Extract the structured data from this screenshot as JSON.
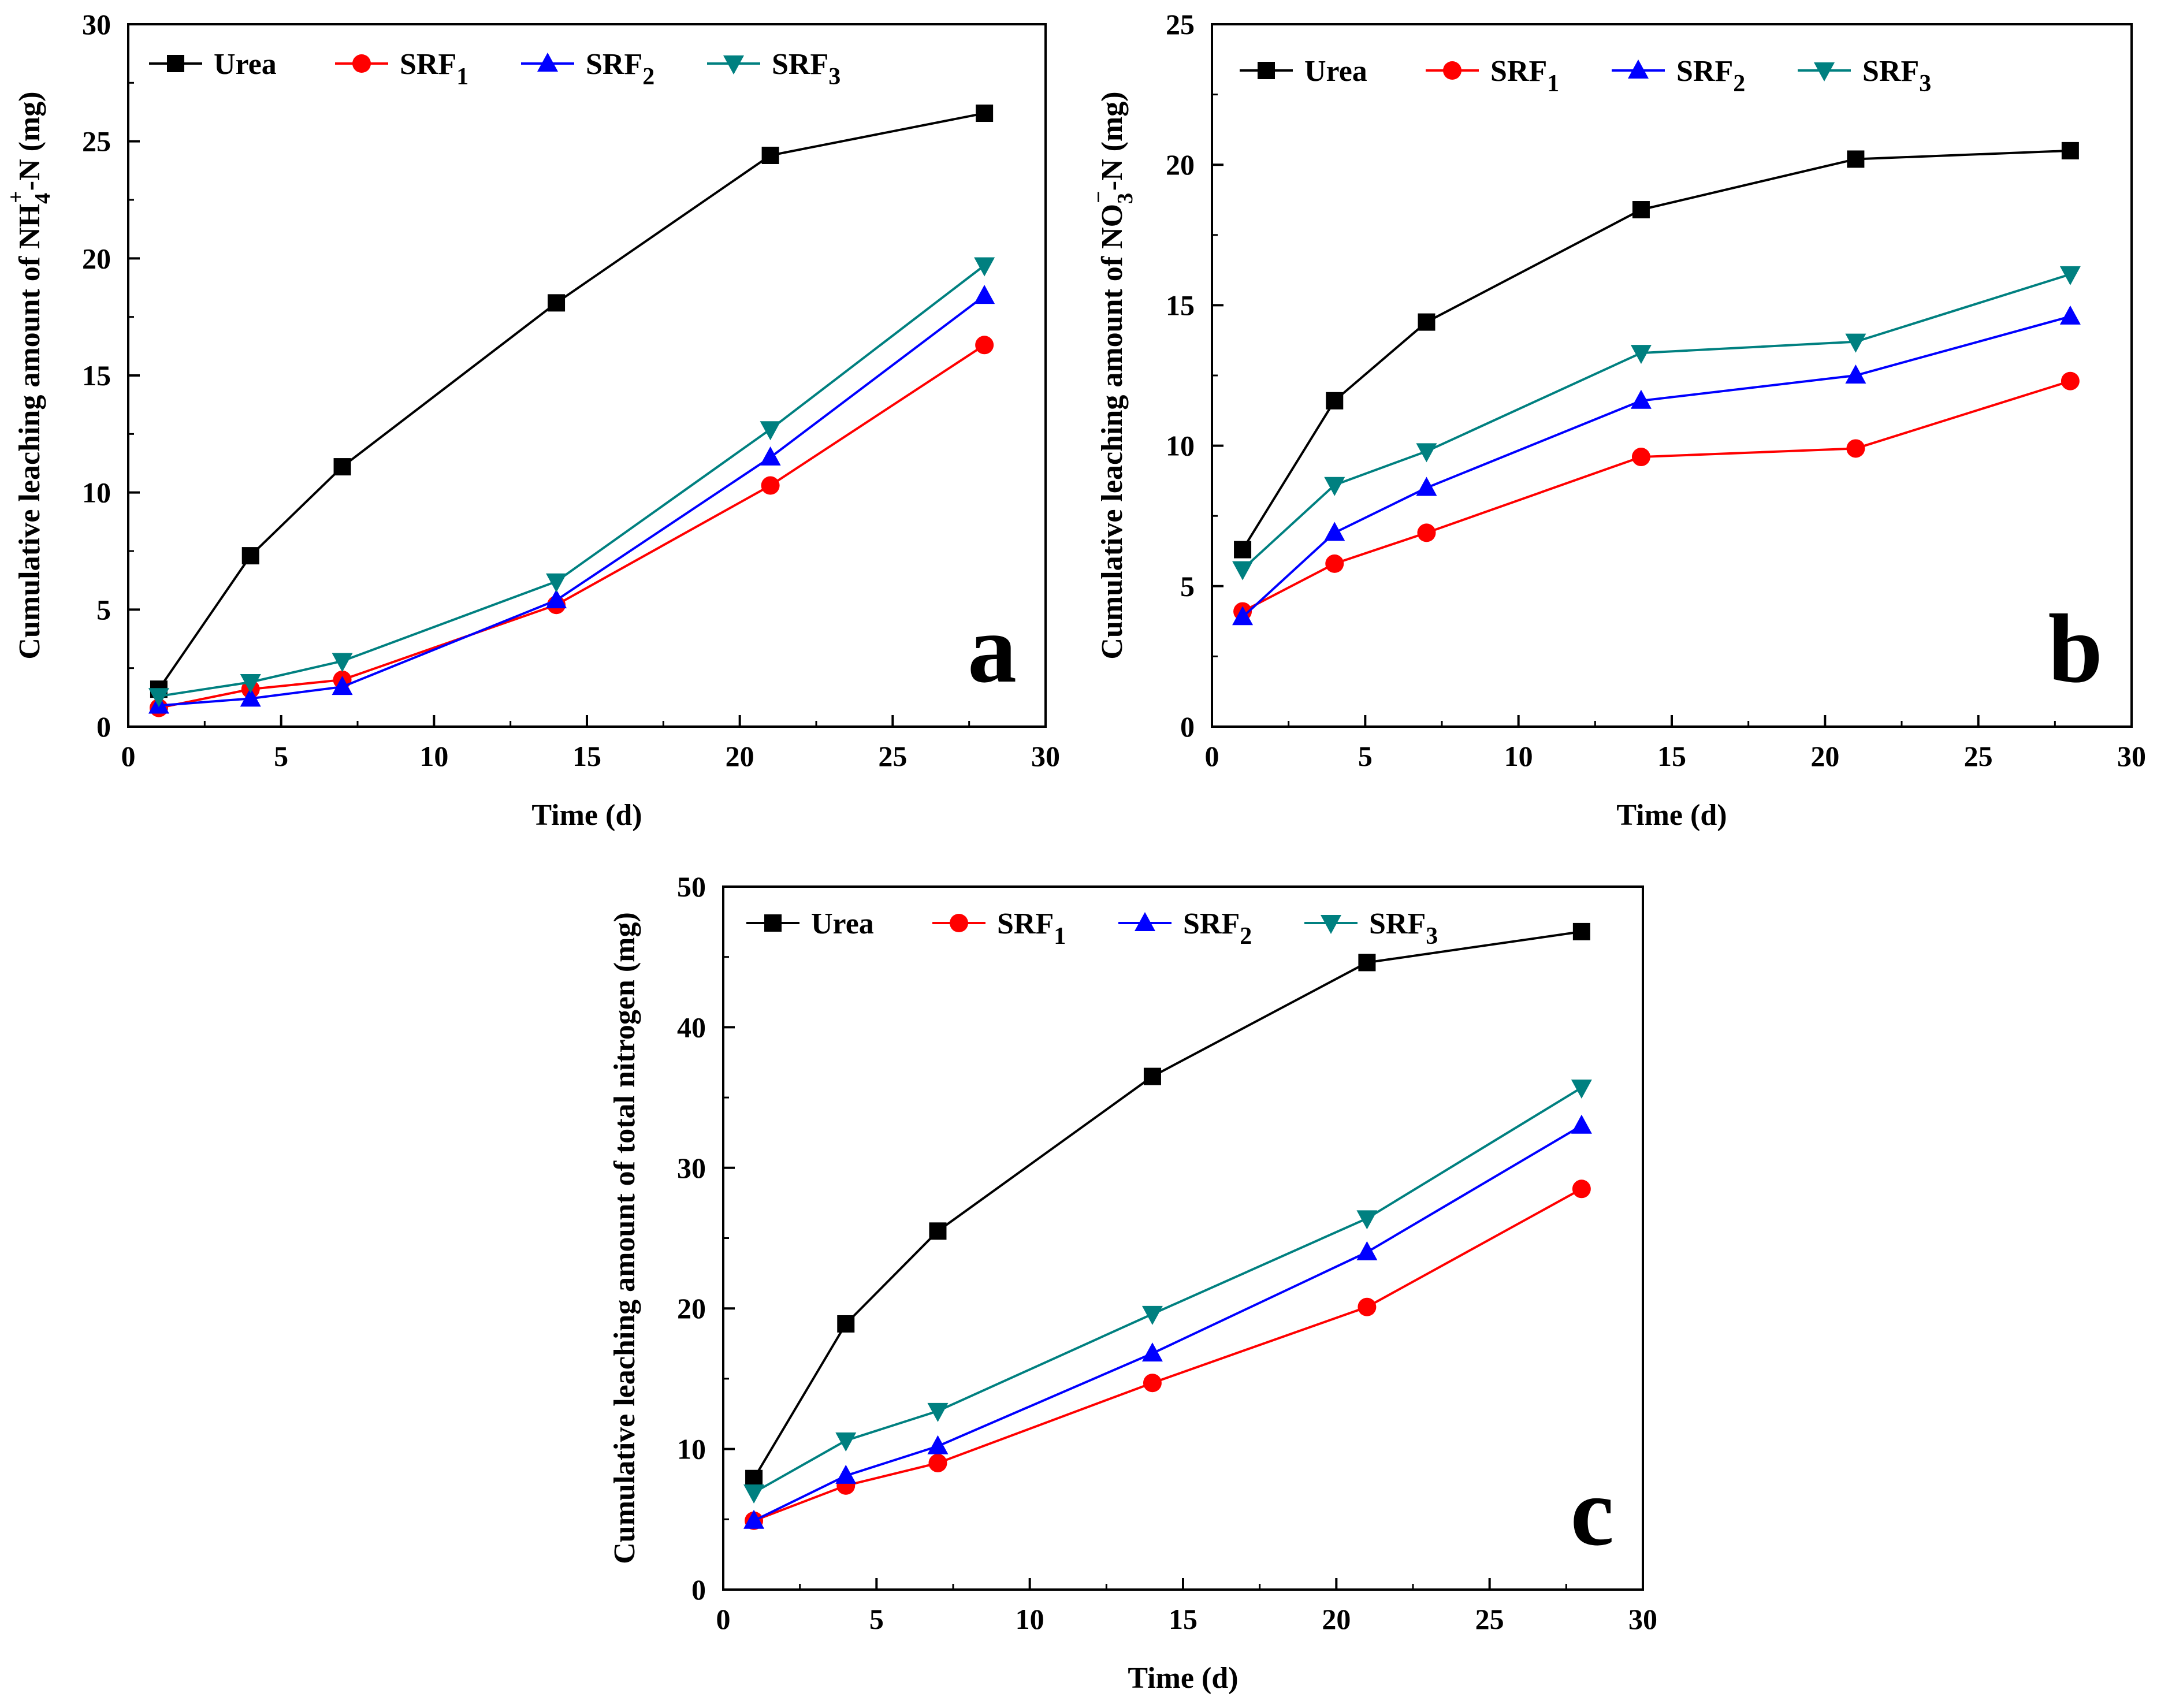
{
  "figure": {
    "panels": [
      "panel_a",
      "panel_b",
      "panel_c"
    ]
  },
  "chart_data": [
    {
      "id": "panel_a",
      "type": "line",
      "panel_label": "a",
      "xlabel": "Time (d)",
      "ylabel": "Cumulative  leaching  amount  of  NH4+-N (mg)",
      "ylabel_parts": {
        "pre": "Cumulative  leaching  amount  of  NH",
        "sub": "4",
        "sup": "+",
        "post": "-N (mg)"
      },
      "xlim": [
        0,
        30
      ],
      "ylim": [
        0,
        30
      ],
      "xticks": [
        0,
        5,
        10,
        15,
        20,
        25,
        30
      ],
      "yticks": [
        0,
        5,
        10,
        15,
        20,
        25,
        30
      ],
      "legend_position": "top-left",
      "x": [
        1,
        4,
        7,
        14,
        21,
        28
      ],
      "series": [
        {
          "name": "Urea",
          "base": "Urea",
          "sub": "",
          "color": "#000000",
          "marker": "square",
          "values": [
            1.6,
            7.3,
            11.1,
            18.1,
            24.4,
            26.2
          ]
        },
        {
          "name": "SRF1",
          "base": "SRF",
          "sub": "1",
          "color": "#ff0000",
          "marker": "circle",
          "values": [
            0.8,
            1.6,
            2.0,
            5.2,
            10.3,
            16.3
          ]
        },
        {
          "name": "SRF2",
          "base": "SRF",
          "sub": "2",
          "color": "#0000ff",
          "marker": "triangle-up",
          "values": [
            0.9,
            1.2,
            1.7,
            5.4,
            11.5,
            18.4
          ]
        },
        {
          "name": "SRF3",
          "base": "SRF",
          "sub": "3",
          "color": "#008080",
          "marker": "triangle-down",
          "values": [
            1.3,
            1.9,
            2.8,
            6.2,
            12.7,
            19.7
          ]
        }
      ]
    },
    {
      "id": "panel_b",
      "type": "line",
      "panel_label": "b",
      "xlabel": "Time (d)",
      "ylabel": "Cumulative  leaching  amount  of  NO3--N (mg)",
      "ylabel_parts": {
        "pre": "Cumulative  leaching  amount  of  NO",
        "sub": "3",
        "sup": "−",
        "post": "-N (mg)"
      },
      "xlim": [
        0,
        30
      ],
      "ylim": [
        0,
        25
      ],
      "xticks": [
        0,
        5,
        10,
        15,
        20,
        25,
        30
      ],
      "yticks": [
        0,
        5,
        10,
        15,
        20,
        25
      ],
      "legend_position": "top-left",
      "x": [
        1,
        4,
        7,
        14,
        21,
        28
      ],
      "series": [
        {
          "name": "Urea",
          "base": "Urea",
          "sub": "",
          "color": "#000000",
          "marker": "square",
          "values": [
            6.3,
            11.6,
            14.4,
            18.4,
            20.2,
            20.5
          ]
        },
        {
          "name": "SRF1",
          "base": "SRF",
          "sub": "1",
          "color": "#ff0000",
          "marker": "circle",
          "values": [
            4.1,
            5.8,
            6.9,
            9.6,
            9.9,
            12.3
          ]
        },
        {
          "name": "SRF2",
          "base": "SRF",
          "sub": "2",
          "color": "#0000ff",
          "marker": "triangle-up",
          "values": [
            3.9,
            6.9,
            8.5,
            11.6,
            12.5,
            14.6
          ]
        },
        {
          "name": "SRF3",
          "base": "SRF",
          "sub": "3",
          "color": "#008080",
          "marker": "triangle-down",
          "values": [
            5.6,
            8.6,
            9.8,
            13.3,
            13.7,
            16.1
          ]
        }
      ]
    },
    {
      "id": "panel_c",
      "type": "line",
      "panel_label": "c",
      "xlabel": "Time (d)",
      "ylabel": "Cumulative leaching amount of total nitrogen (mg)",
      "ylabel_parts": {
        "pre": "Cumulative leaching amount of total nitrogen (mg)",
        "sub": "",
        "sup": "",
        "post": ""
      },
      "xlim": [
        0,
        30
      ],
      "ylim": [
        0,
        50
      ],
      "xticks": [
        0,
        5,
        10,
        15,
        20,
        25,
        30
      ],
      "yticks": [
        0,
        10,
        20,
        30,
        40,
        50
      ],
      "legend_position": "top-left",
      "x": [
        1,
        4,
        7,
        14,
        21,
        28
      ],
      "series": [
        {
          "name": "Urea",
          "base": "Urea",
          "sub": "",
          "color": "#000000",
          "marker": "square",
          "values": [
            7.9,
            18.9,
            25.5,
            36.5,
            44.6,
            46.8
          ]
        },
        {
          "name": "SRF1",
          "base": "SRF",
          "sub": "1",
          "color": "#ff0000",
          "marker": "circle",
          "values": [
            4.9,
            7.4,
            9.0,
            14.7,
            20.1,
            28.5
          ]
        },
        {
          "name": "SRF2",
          "base": "SRF",
          "sub": "2",
          "color": "#0000ff",
          "marker": "triangle-up",
          "values": [
            4.9,
            8.1,
            10.2,
            16.8,
            24.0,
            33.0
          ]
        },
        {
          "name": "SRF3",
          "base": "SRF",
          "sub": "3",
          "color": "#008080",
          "marker": "triangle-down",
          "values": [
            6.9,
            10.6,
            12.7,
            19.6,
            26.4,
            35.7
          ]
        }
      ]
    }
  ]
}
